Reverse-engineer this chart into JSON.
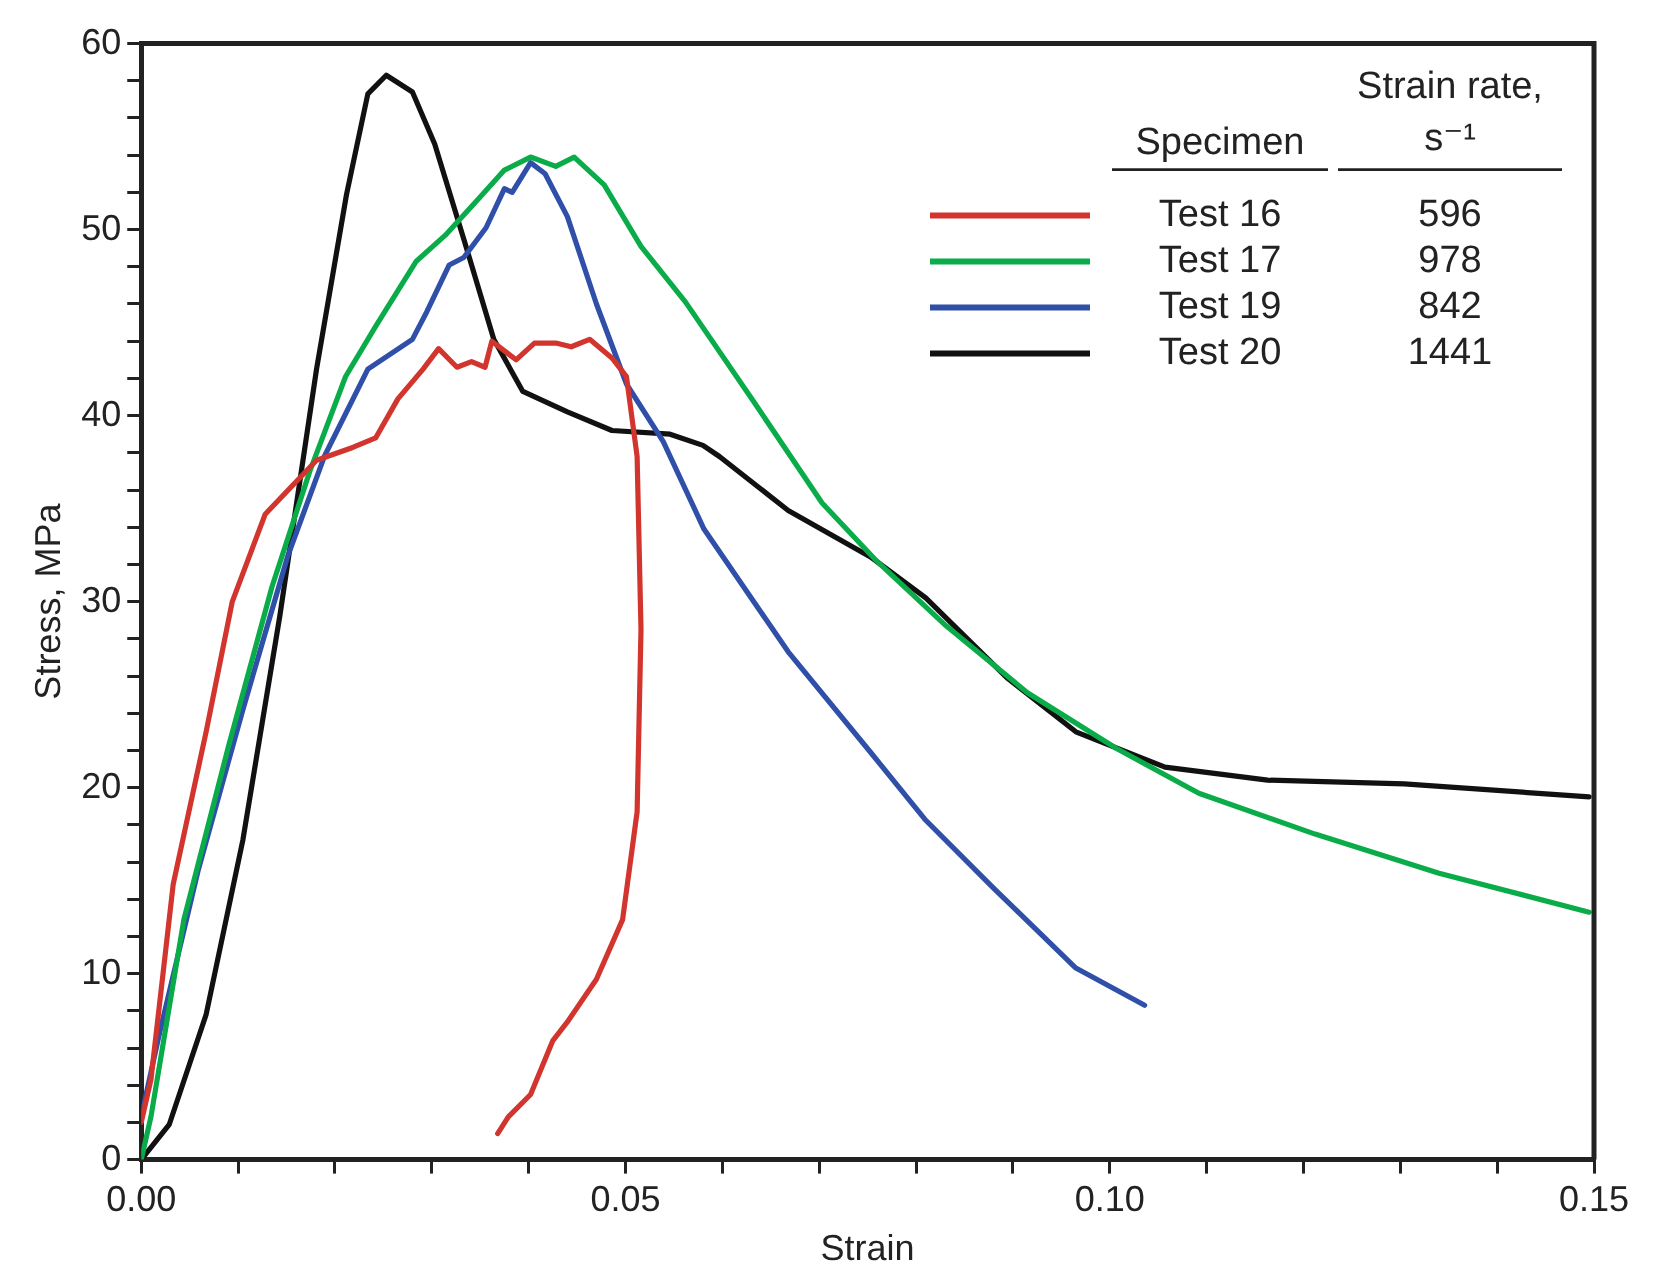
{
  "chart_data": {
    "type": "line",
    "xlabel": "Strain",
    "ylabel": "Stress, MPa",
    "legend": "top right",
    "legend_title": "Specimen",
    "annotations": [
      "Strain rate, s⁻¹",
      "596",
      "978",
      "842",
      "1441"
    ],
    "xlim": [
      0,
      0.15
    ],
    "ylim": [
      0,
      60
    ],
    "xticks": [
      {
        "value": 0,
        "label": "0.00"
      },
      {
        "value": 0.01,
        "label": null
      },
      {
        "value": 0.02,
        "label": null
      },
      {
        "value": 0.03,
        "label": null
      },
      {
        "value": 0.04,
        "label": null
      },
      {
        "value": 0.05,
        "label": "0.05"
      },
      {
        "value": 0.06,
        "label": null
      },
      {
        "value": 0.07,
        "label": null
      },
      {
        "value": 0.08,
        "label": null
      },
      {
        "value": 0.09,
        "label": null
      },
      {
        "value": 0.1,
        "label": "0.10"
      },
      {
        "value": 0.11,
        "label": null
      },
      {
        "value": 0.12,
        "label": null
      },
      {
        "value": 0.13,
        "label": null
      },
      {
        "value": 0.14,
        "label": null
      },
      {
        "value": 0.15,
        "label": "0.15"
      }
    ],
    "yticks": [
      0,
      {
        "value": 2,
        "label": null
      },
      {
        "value": 4,
        "label": null
      },
      {
        "value": 6,
        "label": null
      },
      {
        "value": 8,
        "label": null
      },
      10,
      {
        "value": 12,
        "label": null
      },
      {
        "value": 14,
        "label": null
      },
      {
        "value": 16,
        "label": null
      },
      {
        "value": 18,
        "label": null
      },
      20,
      {
        "value": 22,
        "label": null
      },
      {
        "value": 24,
        "label": null
      },
      {
        "value": 26,
        "label": null
      },
      {
        "value": 28,
        "label": null
      },
      30,
      {
        "value": 32,
        "label": null
      },
      {
        "value": 34,
        "label": null
      },
      {
        "value": 36,
        "label": null
      },
      {
        "value": 38,
        "label": null
      },
      40,
      {
        "value": 42,
        "label": null
      },
      {
        "value": 44,
        "label": null
      },
      {
        "value": 46,
        "label": null
      },
      {
        "value": 48,
        "label": null
      },
      50,
      {
        "value": 52,
        "label": null
      },
      {
        "value": 54,
        "label": null
      },
      {
        "value": 56,
        "label": null
      },
      {
        "value": 58,
        "label": null
      },
      60
    ],
    "grid": false,
    "line_style": "solid",
    "series": [
      {
        "name": "Test 16",
        "color": "#d2352e",
        "x": [
          0,
          0.001,
          0.0033,
          0.0067,
          0.0094,
          0.0128,
          0.0181,
          0.0219,
          0.0242,
          0.0265,
          0.0291,
          0.0307,
          0.0326,
          0.0341,
          0.0355,
          0.0362,
          0.0387,
          0.0406,
          0.0428,
          0.0444,
          0.0463,
          0.0486,
          0.0501,
          0.0512,
          0.0516,
          0.0512,
          0.0497,
          0.047,
          0.044,
          0.0425,
          0.0402,
          0.0379,
          0.0368
        ],
        "values": [
          2,
          4.3,
          14.8,
          23,
          30,
          34.7,
          37.6,
          38.3,
          38.8,
          40.9,
          42.5,
          43.6,
          42.6,
          42.9,
          42.6,
          44,
          43,
          43.9,
          43.9,
          43.7,
          44.1,
          43.1,
          42.1,
          37.8,
          28.5,
          18.7,
          12.9,
          9.7,
          7.4,
          6.4,
          3.5,
          2.3,
          1.4
        ]
      },
      {
        "name": "Test 17",
        "color": "#0aac4a",
        "x": [
          0,
          0.001,
          0.0044,
          0.009,
          0.0135,
          0.0174,
          0.0211,
          0.0242,
          0.0284,
          0.0314,
          0.0349,
          0.0375,
          0.0402,
          0.0428,
          0.0447,
          0.0478,
          0.0516,
          0.0562,
          0.0633,
          0.0703,
          0.0759,
          0.0831,
          0.0915,
          0.1007,
          0.1092,
          0.1212,
          0.134,
          0.1495
        ],
        "values": [
          0,
          2.3,
          12.9,
          22.2,
          30.8,
          37,
          42.1,
          44.8,
          48.3,
          49.7,
          51.7,
          53.2,
          53.9,
          53.4,
          53.9,
          52.4,
          49.1,
          46.1,
          40.7,
          35.3,
          32.2,
          28.7,
          25.1,
          22.1,
          19.7,
          17.5,
          15.4,
          13.3
        ]
      },
      {
        "name": "Test 19",
        "color": "#2f4fa8",
        "x": [
          0,
          0.0018,
          0.0059,
          0.0105,
          0.0151,
          0.0189,
          0.0234,
          0.028,
          0.0295,
          0.0318,
          0.0333,
          0.0356,
          0.0375,
          0.0383,
          0.0402,
          0.0417,
          0.044,
          0.047,
          0.0501,
          0.0539,
          0.0581,
          0.0668,
          0.0753,
          0.0809,
          0.088,
          0.0965,
          0.1036
        ],
        "values": [
          2.3,
          6.6,
          15.6,
          24.2,
          32.4,
          37.8,
          42.5,
          44.1,
          45.6,
          48.1,
          48.5,
          50.1,
          52.2,
          52,
          53.6,
          53,
          50.7,
          46,
          41.7,
          38.6,
          33.9,
          27.3,
          21.9,
          18.3,
          14.6,
          10.3,
          8.3
        ]
      },
      {
        "name": "Test 20",
        "color": "#111111",
        "x": [
          0,
          0.0029,
          0.0067,
          0.0105,
          0.0143,
          0.0181,
          0.0212,
          0.0234,
          0.0253,
          0.028,
          0.0303,
          0.0333,
          0.0364,
          0.0394,
          0.044,
          0.0486,
          0.0546,
          0.058,
          0.0597,
          0.0668,
          0.0753,
          0.081,
          0.0894,
          0.0965,
          0.1057,
          0.1163,
          0.1304,
          0.1495
        ],
        "values": [
          0,
          1.9,
          7.8,
          17.2,
          29.2,
          42.5,
          51.9,
          57.3,
          58.3,
          57.4,
          54.6,
          49.5,
          44.1,
          41.3,
          40.2,
          39.2,
          39,
          38.4,
          37.8,
          34.9,
          32.4,
          30.2,
          25.9,
          23,
          21.1,
          20.4,
          20.2,
          19.5
        ]
      }
    ]
  }
}
